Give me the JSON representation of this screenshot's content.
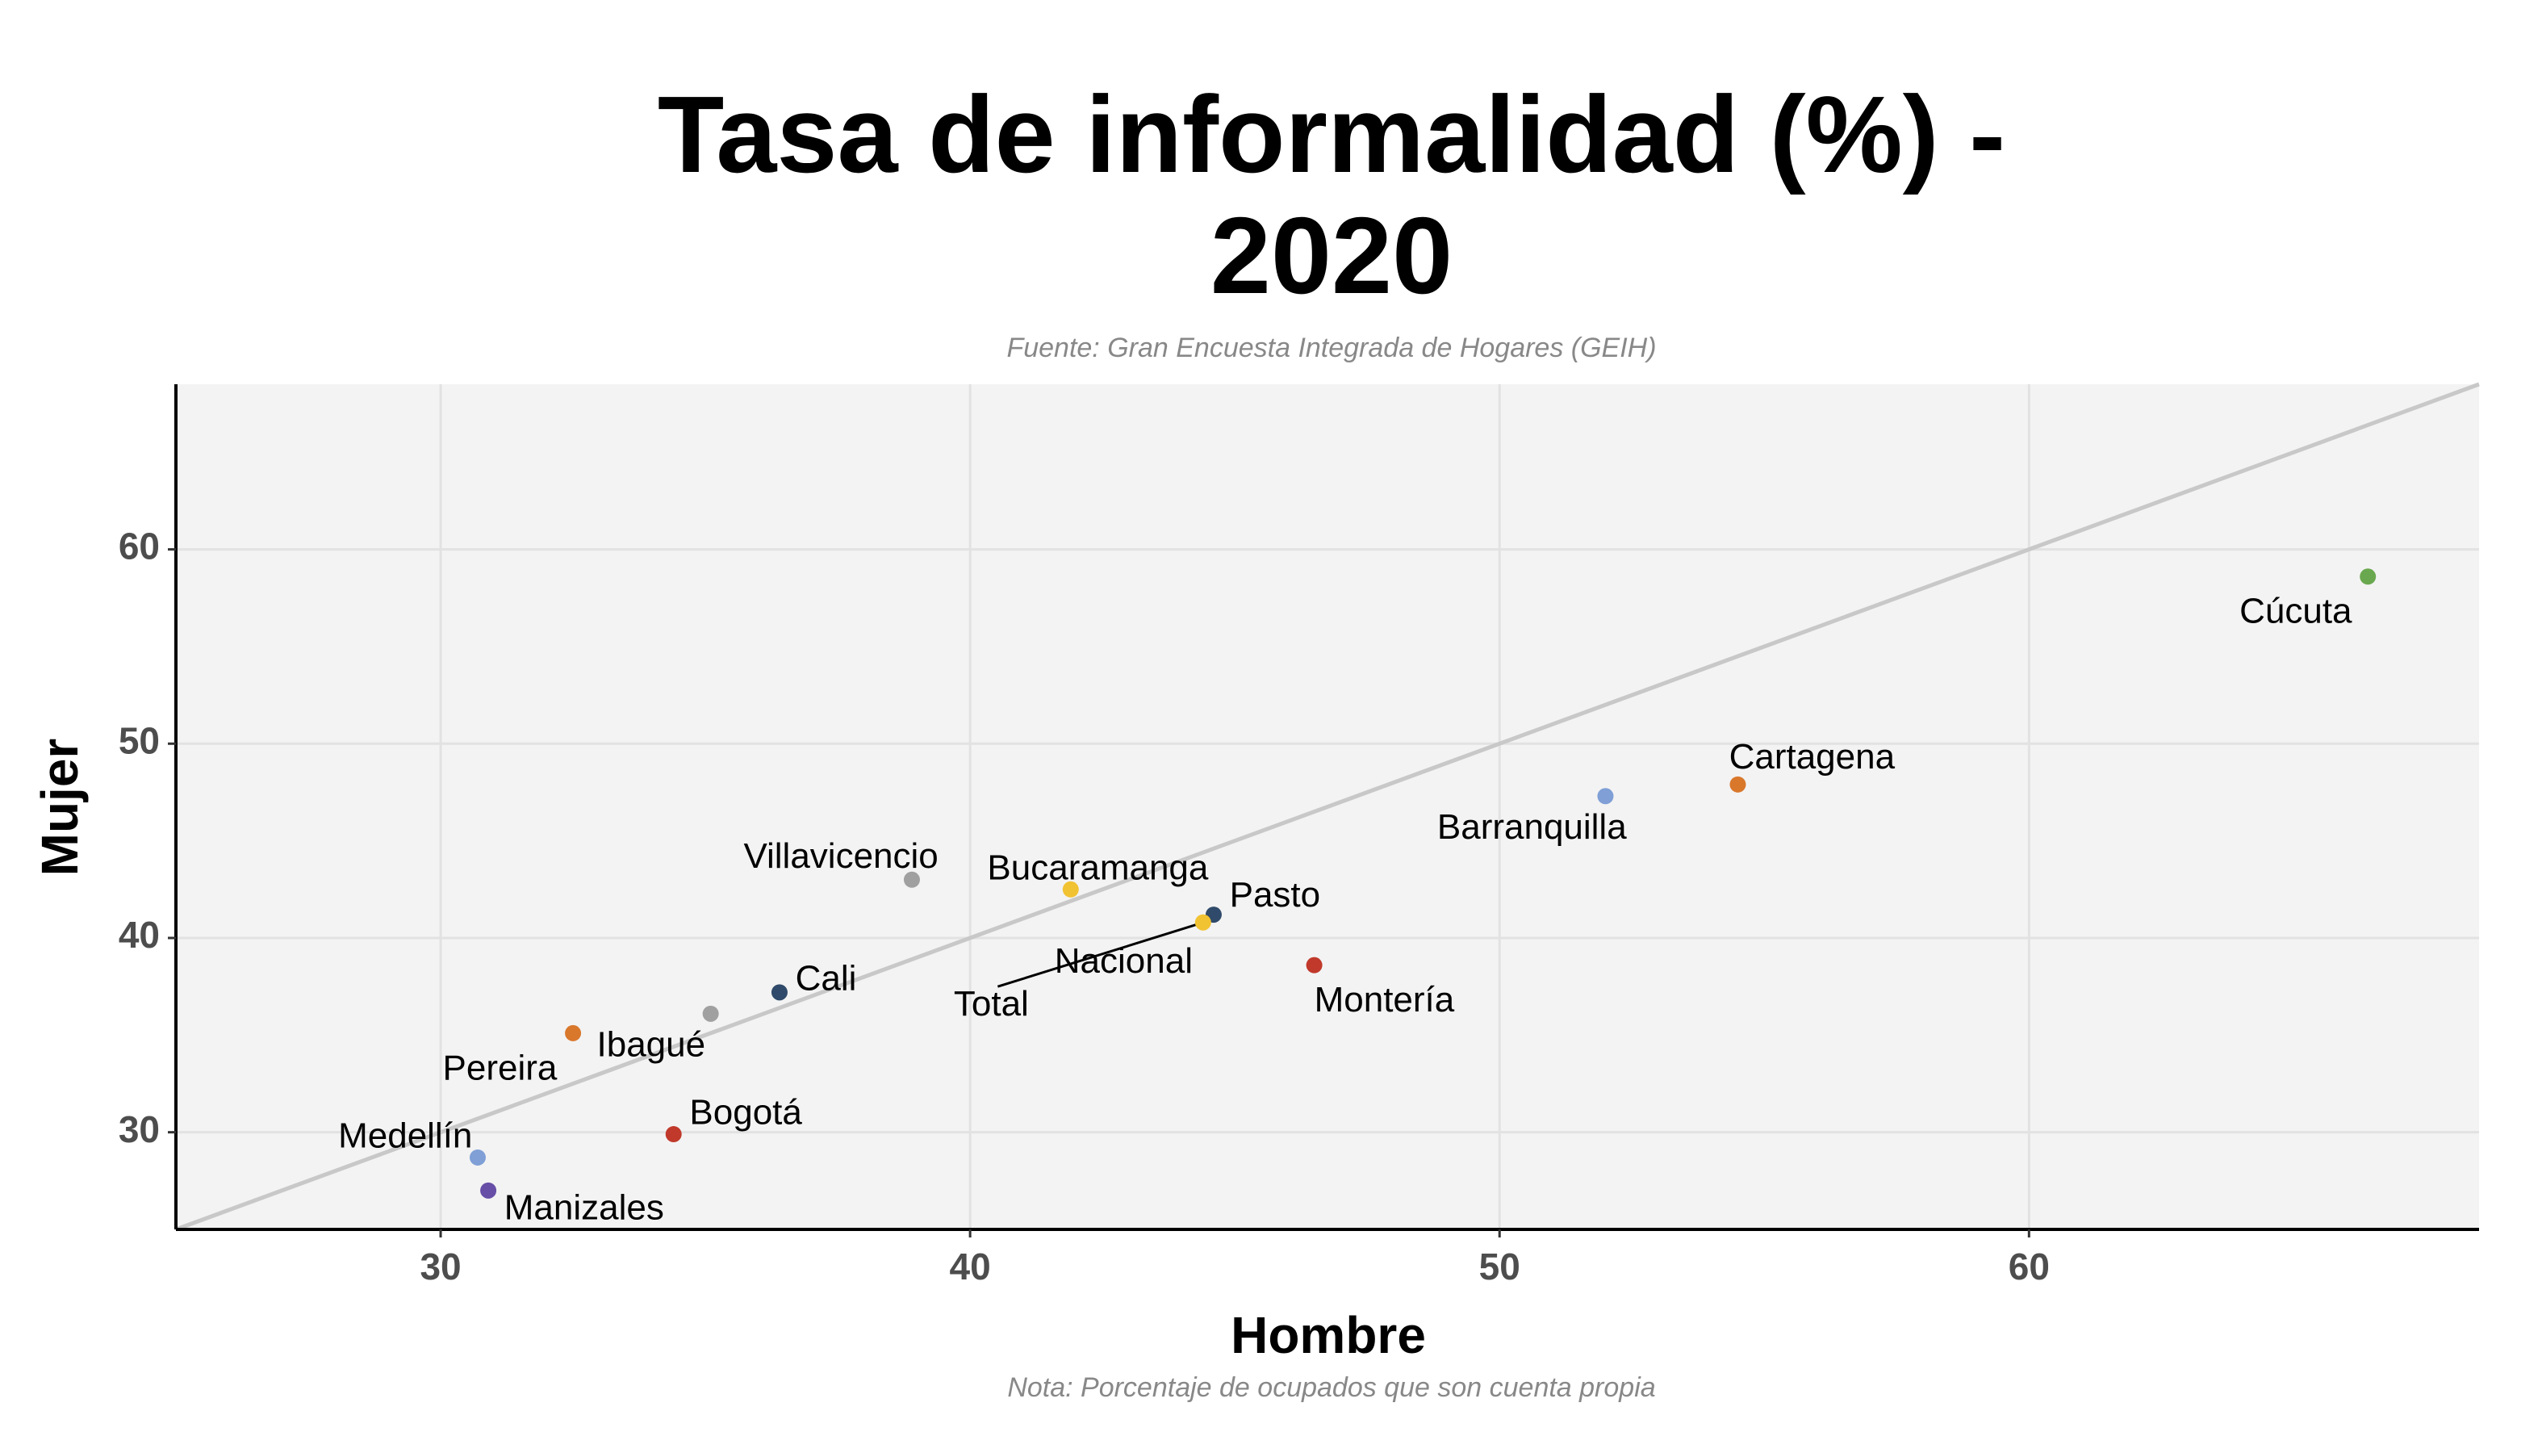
{
  "chart_data": {
    "type": "scatter",
    "title_lines": [
      "Tasa de informalidad (%) -",
      "2020"
    ],
    "subtitle": "Fuente: Gran Encuesta Integrada de Hogares (GEIH)",
    "caption": "Nota: Porcentaje de ocupados que son cuenta propia",
    "xlabel": "Hombre",
    "ylabel": "Mujer",
    "xlim": [
      25,
      68.5
    ],
    "ylim": [
      25,
      68.5
    ],
    "xticks": [
      30,
      40,
      50,
      60
    ],
    "yticks": [
      30,
      40,
      50,
      60
    ],
    "grid": true,
    "reference_line": "y = x",
    "points": [
      {
        "label": "Cúcuta",
        "x": 66.4,
        "y": 58.6,
        "color": "#6aa84f",
        "anchor": "end",
        "lx": -0.3,
        "ly": -1.9
      },
      {
        "label": "Cartagena",
        "x": 54.5,
        "y": 47.9,
        "color": "#d9772b",
        "anchor": "middle",
        "lx": 1.4,
        "ly": 1.3
      },
      {
        "label": "Barranquilla",
        "x": 52.0,
        "y": 47.3,
        "color": "#7f9fd6",
        "anchor": "end",
        "lx": 0.4,
        "ly": -1.7
      },
      {
        "label": "Villavicencio",
        "x": 38.9,
        "y": 43.0,
        "color": "#a0a0a0",
        "anchor": "end",
        "lx": 0.5,
        "ly": 1.1
      },
      {
        "label": "Bucaramanga",
        "x": 41.9,
        "y": 42.5,
        "color": "#f1c232",
        "anchor": "end",
        "lx": 2.6,
        "ly": 1.0
      },
      {
        "label": "Pasto",
        "x": 44.6,
        "y": 41.2,
        "color": "#2f4a6a",
        "anchor": "start",
        "lx": 0.3,
        "ly": 0.9
      },
      {
        "label": "Total",
        "x": 44.4,
        "y": 40.8,
        "color": "#f1c232",
        "anchor": "middle",
        "lx": -4.0,
        "ly": -4.3,
        "leader": true
      },
      {
        "label": "Nacional",
        "x": 44.4,
        "y": 40.8,
        "color": "#f1c232",
        "anchor": "middle",
        "lx": -1.5,
        "ly": -2.1,
        "hideDot": true
      },
      {
        "label": "Montería",
        "x": 46.5,
        "y": 38.6,
        "color": "#c0392b",
        "anchor": "start",
        "lx": 0.0,
        "ly": -1.9
      },
      {
        "label": "Cali",
        "x": 36.4,
        "y": 37.2,
        "color": "#2f4a6a",
        "anchor": "start",
        "lx": 0.3,
        "ly": 0.6
      },
      {
        "label": "Ibagué",
        "x": 35.1,
        "y": 36.1,
        "color": "#a0a0a0",
        "anchor": "end",
        "lx": -0.1,
        "ly": -1.7
      },
      {
        "label": "Pereira",
        "x": 32.5,
        "y": 35.1,
        "color": "#d9772b",
        "anchor": "end",
        "lx": -0.3,
        "ly": -1.9
      },
      {
        "label": "Bogotá",
        "x": 34.4,
        "y": 29.9,
        "color": "#c0392b",
        "anchor": "start",
        "lx": 0.3,
        "ly": 1.0
      },
      {
        "label": "Medellín",
        "x": 30.7,
        "y": 28.7,
        "color": "#7f9fd6",
        "anchor": "end",
        "lx": -0.1,
        "ly": 1.0
      },
      {
        "label": "Manizales",
        "x": 30.9,
        "y": 27.0,
        "color": "#674ea7",
        "anchor": "start",
        "lx": 0.3,
        "ly": -1.0
      }
    ]
  }
}
